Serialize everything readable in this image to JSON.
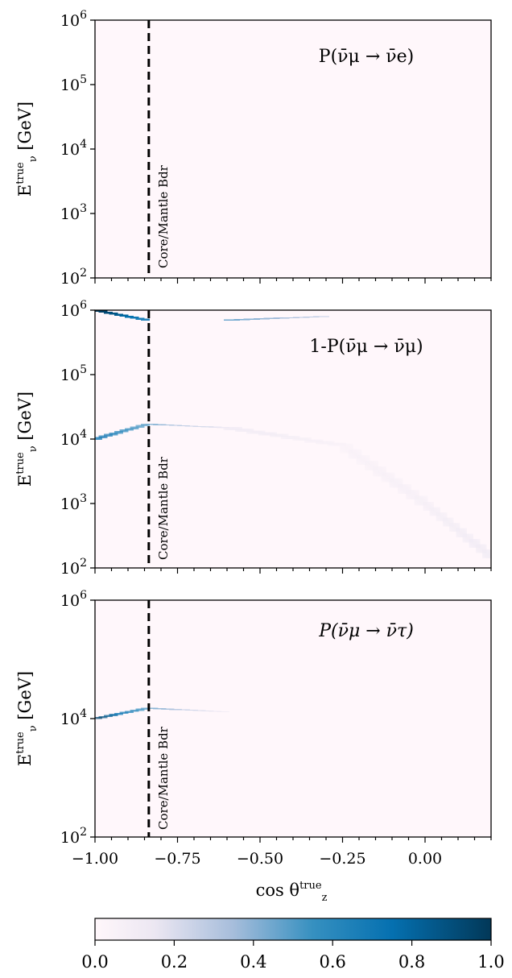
{
  "chart_data": [
    {
      "type": "heatmap",
      "panel": "top",
      "title": "P(ν̄μ → ν̄e)",
      "ylabel": "Eν^true [GeV]",
      "y_scale": "log",
      "ylim": [
        100,
        1000000
      ],
      "y_ticks": [
        {
          "value": 100,
          "base": "10",
          "exp": "2"
        },
        {
          "value": 1000,
          "base": "10",
          "exp": "3"
        },
        {
          "value": 10000,
          "base": "10",
          "exp": "4"
        },
        {
          "value": 100000,
          "base": "10",
          "exp": "5"
        },
        {
          "value": 1000000,
          "base": "10",
          "exp": "6"
        }
      ],
      "xlim": [
        -1.0,
        0.2
      ],
      "x_ticks": [
        -1.0,
        -0.75,
        -0.5,
        -0.25,
        0.0
      ],
      "x_tick_labels": [],
      "boundary": {
        "x": -0.837,
        "label": "Core/Mantle Bdr"
      },
      "features": []
    },
    {
      "type": "heatmap",
      "panel": "middle",
      "title": "1-P(ν̄μ → ν̄μ)",
      "ylabel": "Eν^true [GeV]",
      "y_scale": "log",
      "ylim": [
        100,
        1000000
      ],
      "y_ticks": [
        {
          "value": 100,
          "base": "10",
          "exp": "2"
        },
        {
          "value": 1000,
          "base": "10",
          "exp": "3"
        },
        {
          "value": 10000,
          "base": "10",
          "exp": "4"
        },
        {
          "value": 100000,
          "base": "10",
          "exp": "5"
        },
        {
          "value": 1000000,
          "base": "10",
          "exp": "6"
        }
      ],
      "xlim": [
        -1.0,
        0.2
      ],
      "x_ticks": [
        -1.0,
        -0.75,
        -0.5,
        -0.25,
        0.0
      ],
      "x_tick_labels": [],
      "boundary": {
        "x": -0.837,
        "label": "Core/Mantle Bdr"
      },
      "features": [
        {
          "name": "highE",
          "description_free": true,
          "points": [
            [
              -1.0,
              1000000,
              1.0
            ],
            [
              -0.84,
              700000,
              0.6
            ],
            [
              -0.6,
              700000,
              0.45
            ],
            [
              -0.3,
              800000,
              0.25
            ],
            [
              0.2,
              800000,
              0.05
            ]
          ]
        },
        {
          "name": "resonance",
          "points": [
            [
              -1.0,
              10000,
              0.75
            ],
            [
              -0.84,
              17000,
              0.45
            ],
            [
              -0.6,
              15000,
              0.12
            ],
            [
              -0.25,
              8000,
              0.05
            ],
            [
              0.0,
              1000,
              0.08
            ],
            [
              0.2,
              150,
              0.12
            ]
          ]
        }
      ]
    },
    {
      "type": "heatmap",
      "panel": "bottom",
      "title": "P(ν̄μ → ν̄τ)",
      "ylabel": "Eν^true [GeV]",
      "y_scale": "log",
      "ylim": [
        100,
        1000000
      ],
      "y_ticks": [
        {
          "value": 100,
          "base": "10",
          "exp": "2"
        },
        {
          "value": 10000,
          "base": "10",
          "exp": "4"
        },
        {
          "value": 1000000,
          "base": "10",
          "exp": "6"
        }
      ],
      "xlim": [
        -1.0,
        0.2
      ],
      "x_ticks": [
        -1.0,
        -0.75,
        -0.5,
        -0.25,
        0.0
      ],
      "x_tick_labels": [
        "−1.00",
        "−0.75",
        "−0.50",
        "−0.25",
        "0.00"
      ],
      "xlabel": "cos θz^true",
      "boundary": {
        "x": -0.837,
        "label": "Core/Mantle Bdr"
      },
      "features": [
        {
          "name": "resonance",
          "points": [
            [
              -1.0,
              10000,
              0.95
            ],
            [
              -0.84,
              15000,
              0.45
            ],
            [
              -0.6,
              13000,
              0.08
            ]
          ]
        }
      ]
    }
  ],
  "colorbar": {
    "range": [
      0.0,
      1.0
    ],
    "ticks": [
      0.0,
      0.2,
      0.4,
      0.6,
      0.8,
      1.0
    ],
    "tick_labels": [
      "0.0",
      "0.2",
      "0.4",
      "0.6",
      "0.8",
      "1.0"
    ],
    "colors": {
      "low": "#fff7fb",
      "mid1": "#d0d1e6",
      "mid2": "#74a9cf",
      "mid3": "#0570b0",
      "high": "#023858"
    }
  }
}
